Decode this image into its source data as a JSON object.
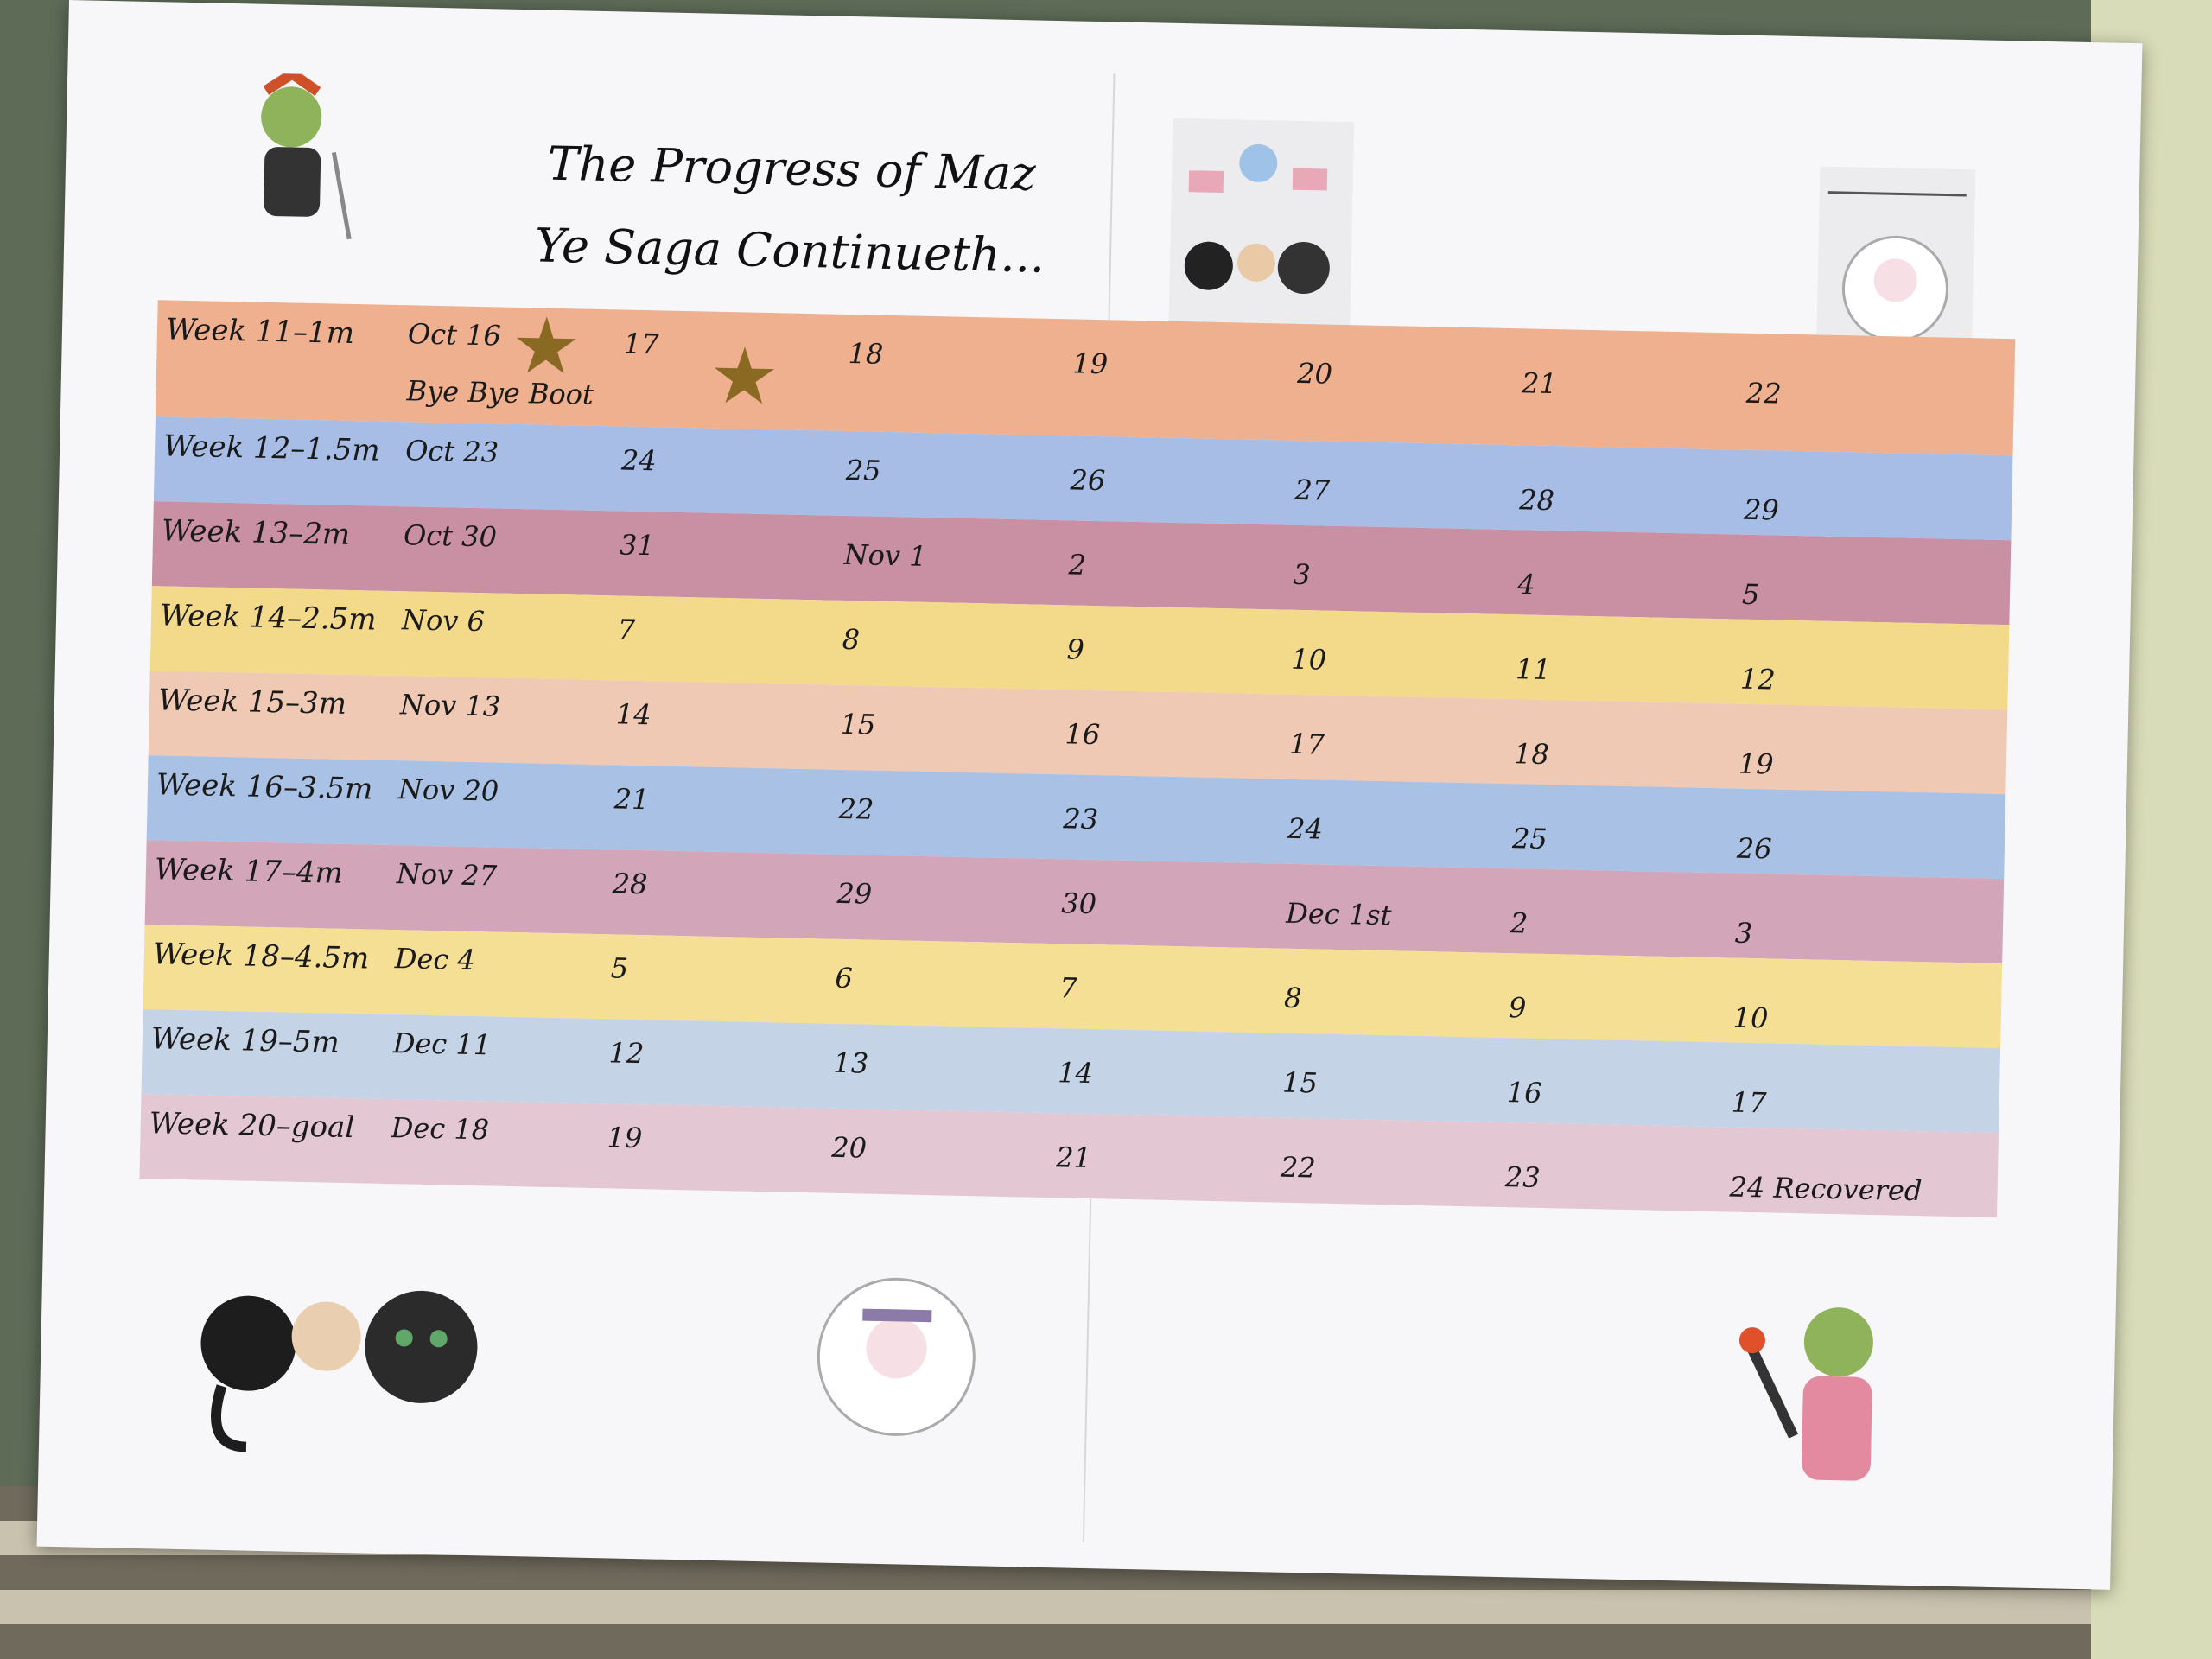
{
  "title": {
    "line1": "The Progress of Maz",
    "line2": "Ye Saga Continueth..."
  },
  "rows": [
    {
      "label": "Week 11–1m",
      "days": [
        "Oct 16",
        "17",
        "18",
        "19",
        "20",
        "21",
        "22"
      ],
      "note": "Bye Bye Boot",
      "color": "#eeb08e"
    },
    {
      "label": "Week 12–1.5m",
      "days": [
        "Oct 23",
        "24",
        "25",
        "26",
        "27",
        "28",
        "29"
      ],
      "color": "#a7bde6"
    },
    {
      "label": "Week 13–2m",
      "days": [
        "Oct 30",
        "31",
        "Nov 1",
        "2",
        "3",
        "4",
        "5"
      ],
      "color": "#c98fa3"
    },
    {
      "label": "Week 14–2.5m",
      "days": [
        "Nov 6",
        "7",
        "8",
        "9",
        "10",
        "11",
        "12"
      ],
      "color": "#f3d98a"
    },
    {
      "label": "Week 15–3m",
      "days": [
        "Nov 13",
        "14",
        "15",
        "16",
        "17",
        "18",
        "19"
      ],
      "color": "#efc9b4"
    },
    {
      "label": "Week 16–3.5m",
      "days": [
        "Nov 20",
        "21",
        "22",
        "23",
        "24",
        "25",
        "26"
      ],
      "color": "#a9c1e4"
    },
    {
      "label": "Week 17–4m",
      "days": [
        "Nov 27",
        "28",
        "29",
        "30",
        "Dec 1st",
        "2",
        "3"
      ],
      "color": "#d2a6b8"
    },
    {
      "label": "Week 18–4.5m",
      "days": [
        "Dec 4",
        "5",
        "6",
        "7",
        "8",
        "9",
        "10"
      ],
      "color": "#f4df95"
    },
    {
      "label": "Week 19–5m",
      "days": [
        "Dec 11",
        "12",
        "13",
        "14",
        "15",
        "16",
        "17"
      ],
      "color": "#c5d3e6"
    },
    {
      "label": "Week 20–goal",
      "days": [
        "Dec 18",
        "19",
        "20",
        "21",
        "22",
        "23",
        "24 Recovered"
      ],
      "color": "#e3c8d4"
    }
  ],
  "stickers": {
    "icon": "gold-star-icon",
    "color": "#8a6a22",
    "on_days": [
      "Oct 16",
      "17"
    ]
  }
}
